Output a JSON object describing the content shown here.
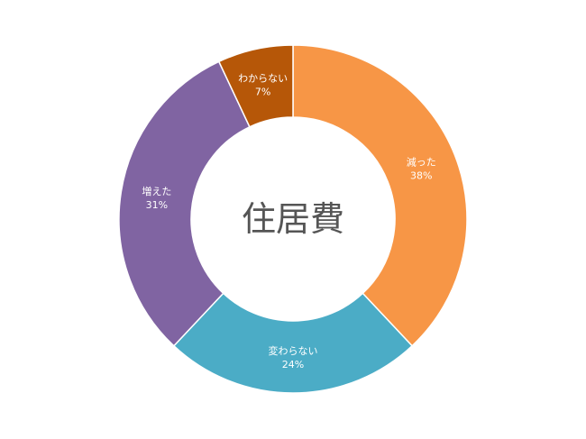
{
  "chart_data": {
    "type": "pie",
    "title": "住居費",
    "categories": [
      "減った",
      "変わらない",
      "増えた",
      "わからない"
    ],
    "values": [
      38,
      24,
      31,
      7
    ],
    "labels": [
      "38%",
      "24%",
      "31%",
      "7%"
    ],
    "colors": [
      "#f79646",
      "#4bacc6",
      "#8064a2",
      "#b65708"
    ],
    "legend": "none"
  }
}
